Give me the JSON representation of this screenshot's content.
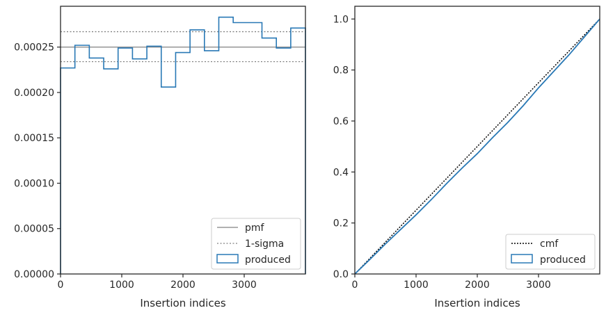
{
  "colors": {
    "hist": "#2878b5",
    "pmf": "#808080",
    "sigma": "#808080",
    "cmf": "#000000",
    "axes": "#262626"
  },
  "chart_data": [
    {
      "type": "histogram-step",
      "xlabel": "Insertion indices",
      "ylabel": "",
      "xlim": [
        0,
        4000
      ],
      "ylim": [
        0,
        0.000295
      ],
      "xticks": [
        0,
        1000,
        2000,
        3000
      ],
      "xtick_labels": [
        "0",
        "1000",
        "2000",
        "3000"
      ],
      "yticks": [
        0,
        5e-05,
        0.0001,
        0.00015,
        0.0002,
        0.00025
      ],
      "ytick_labels": [
        "0.00000",
        "0.00005",
        "0.00010",
        "0.00015",
        "0.00020",
        "0.00025"
      ],
      "bin_edges": [
        0,
        235,
        470,
        705,
        940,
        1175,
        1410,
        1645,
        1880,
        2115,
        2350,
        2585,
        2820,
        3055,
        3290,
        3525,
        3760,
        4000
      ],
      "values": [
        0.000227,
        0.000252,
        0.000238,
        0.000226,
        0.000249,
        0.000237,
        0.000251,
        0.000206,
        0.000244,
        0.000269,
        0.000246,
        0.000283,
        0.000277,
        0.000277,
        0.00026,
        0.000249,
        0.000271
      ],
      "pmf": 0.00025,
      "sigma_upper": 0.000267,
      "sigma_lower": 0.000234,
      "legend_position": "lower right",
      "legend": [
        {
          "label": "pmf",
          "style": "solid"
        },
        {
          "label": "1-sigma",
          "style": "dotted"
        },
        {
          "label": "produced",
          "style": "step"
        }
      ]
    },
    {
      "type": "line",
      "xlabel": "Insertion indices",
      "ylabel": "",
      "xlim": [
        0,
        4000
      ],
      "ylim": [
        0,
        1.05
      ],
      "xticks": [
        0,
        1000,
        2000,
        3000
      ],
      "xtick_labels": [
        "0",
        "1000",
        "2000",
        "3000"
      ],
      "yticks": [
        0,
        0.2,
        0.4,
        0.6,
        0.8,
        1.0
      ],
      "ytick_labels": [
        "0.0",
        "0.2",
        "0.4",
        "0.6",
        "0.8",
        "1.0"
      ],
      "series": [
        {
          "name": "cmf",
          "style": "dotted",
          "x": [
            0,
            4000
          ],
          "y": [
            0,
            1.0
          ]
        },
        {
          "name": "produced",
          "style": "step",
          "x": [
            0,
            250,
            500,
            750,
            1000,
            1250,
            1500,
            1750,
            2000,
            2250,
            2500,
            2750,
            3000,
            3250,
            3500,
            3750,
            4000
          ],
          "y": [
            0,
            0.058,
            0.118,
            0.175,
            0.232,
            0.292,
            0.355,
            0.415,
            0.472,
            0.535,
            0.595,
            0.66,
            0.73,
            0.795,
            0.86,
            0.93,
            1.0
          ]
        }
      ],
      "legend_position": "lower right"
    }
  ]
}
